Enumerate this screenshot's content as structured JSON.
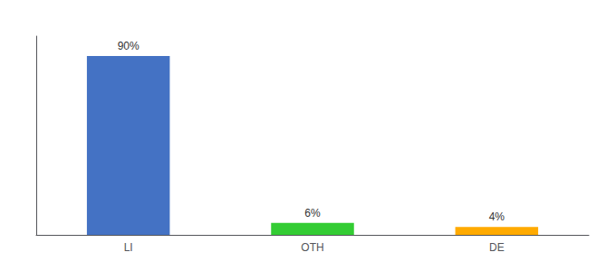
{
  "chart_data": {
    "type": "bar",
    "categories": [
      "LI",
      "OTH",
      "DE"
    ],
    "values": [
      90,
      6,
      4
    ],
    "value_labels": [
      "90%",
      "6%",
      "4%"
    ],
    "colors": [
      "#4472c4",
      "#33cc33",
      "#ffaa00"
    ],
    "ylim": [
      0,
      100
    ],
    "yticks": [],
    "grid": false,
    "data_labels": true,
    "tick_labels": "x"
  }
}
